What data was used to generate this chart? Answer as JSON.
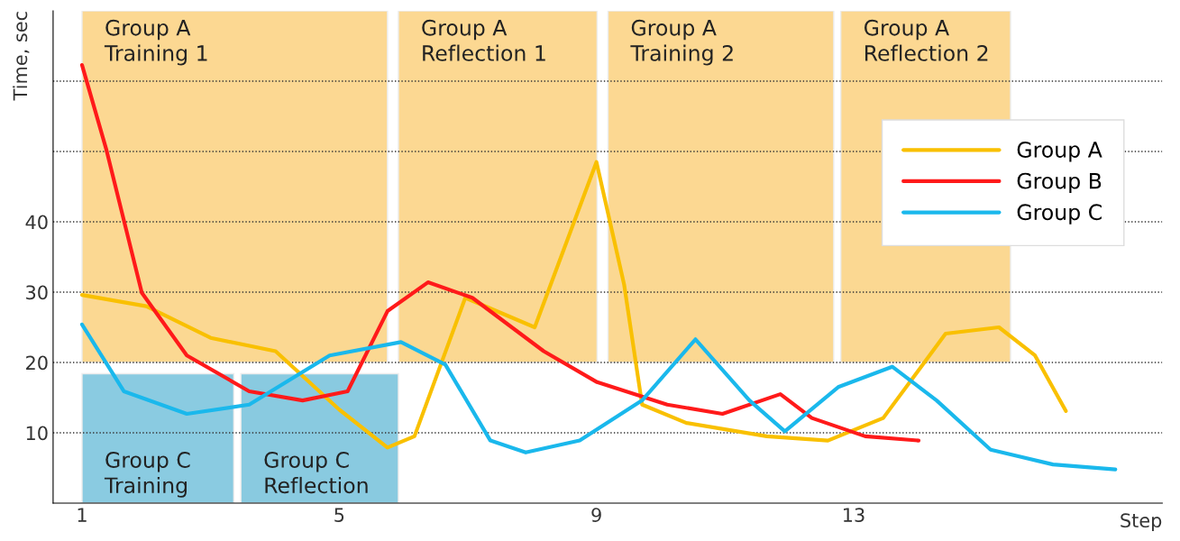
{
  "chart_data": {
    "type": "line",
    "xlabel": "Step",
    "ylabel": "Time, sec",
    "xlim": [
      0.55,
      17.8
    ],
    "ylim": [
      0,
      70
    ],
    "xticks": [
      1,
      5,
      9,
      13
    ],
    "yticks": [
      10,
      20,
      30,
      40,
      {
        "value": 50,
        "label": null
      },
      {
        "value": 60,
        "label": null
      }
    ],
    "grid": "y",
    "legend": "top right",
    "line_style": "solid",
    "marker": "none",
    "bands": [
      {
        "axis": "x",
        "from": 1,
        "to": 5.75,
        "label": "Group A\nTraining 1",
        "color": "#f9b93a"
      },
      {
        "axis": "x",
        "from": 5.92,
        "to": 9.01,
        "label": "Group A\nReflection 1",
        "color": "#f9b93a"
      },
      {
        "axis": "x",
        "from": 9.18,
        "to": 12.69,
        "label": "Group A\nTraining 2",
        "color": "#f9b93a"
      },
      {
        "axis": "x",
        "from": 12.8,
        "to": 15.44,
        "label": "Group A\nReflection 2",
        "color": "#f9b93a"
      },
      {
        "axis": "x",
        "from": 1,
        "to": 3.36,
        "label": "Group C\nTraining",
        "color": "#2aa0c8"
      },
      {
        "axis": "x",
        "from": 3.47,
        "to": 5.92,
        "label": "Group C\nReflection",
        "color": "#2aa0c8"
      }
    ],
    "series": [
      {
        "name": "Group A",
        "color": "#f9c000",
        "x": [
          1,
          2,
          3,
          4.01,
          5,
          5.75,
          6.17,
          6.96,
          8.04,
          9,
          9.43,
          9.71,
          10.4,
          11.65,
          12.6,
          13.46,
          14.43,
          15.26,
          15.82,
          16.3
        ],
        "values": [
          29.6,
          28,
          23.5,
          21.6,
          13.3,
          7.9,
          9.5,
          29.2,
          25,
          48.5,
          31.1,
          14,
          11.4,
          9.5,
          8.9,
          12.1,
          24.1,
          25,
          21,
          13.1
        ]
      },
      {
        "name": "Group B",
        "color": "#ff1a1a",
        "x": [
          1,
          1.38,
          1.93,
          2.63,
          3.6,
          4.43,
          5.13,
          5.75,
          6.38,
          7.07,
          8.18,
          9.01,
          10.1,
          10.96,
          11.86,
          12.35,
          13.18,
          14.01
        ],
        "values": [
          62.3,
          50.2,
          29.9,
          21,
          15.9,
          14.6,
          15.9,
          27.3,
          31.4,
          29.2,
          21.6,
          17.2,
          14,
          12.7,
          15.5,
          12.1,
          9.5,
          8.9
        ]
      },
      {
        "name": "Group C",
        "color": "#1ab8ec",
        "x": [
          1,
          1.65,
          2.63,
          3.6,
          4.85,
          5.96,
          6.65,
          7.35,
          7.9,
          8.74,
          9.71,
          10.54,
          11.38,
          11.93,
          12.76,
          13.6,
          14.29,
          15.13,
          16.1,
          17.07
        ],
        "values": [
          25.4,
          15.9,
          12.7,
          14,
          21,
          22.9,
          19.7,
          8.9,
          7.2,
          8.9,
          14.6,
          23.3,
          14.6,
          10.2,
          16.5,
          19.4,
          14.6,
          7.6,
          5.5,
          4.8
        ]
      }
    ]
  }
}
